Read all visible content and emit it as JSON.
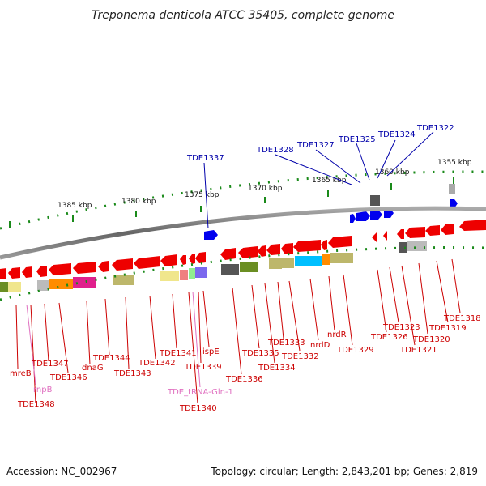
{
  "title": "Treponema denticola ATCC 35405, complete genome",
  "footer": {
    "accession": "Accession: NC_002967",
    "summary": "Topology: circular; Length: 2,843,201 bp; Genes: 2,819"
  },
  "ruler": [
    "1385 kbp",
    "1380 kbp",
    "1375 kbp",
    "1370 kbp",
    "1365 kbp",
    "1360 kbp",
    "1355 kbp"
  ],
  "forward_labels": [
    "TDE1337",
    "TDE1328",
    "TDE1327",
    "TDE1325",
    "TDE1324",
    "TDE1322"
  ],
  "reverse_labels": [
    "mreB",
    "TDE1348",
    "TDE1347",
    "TDE1346",
    "dnaG",
    "TDE1344",
    "TDE1343",
    "TDE1342",
    "TDE1341",
    "TDE1340",
    "TDE1339",
    "ispE",
    "TDE1336",
    "TDE1335",
    "TDE1334",
    "TDE1333",
    "TDE1332",
    "nrdD",
    "nrdR",
    "TDE1329",
    "TDE1326",
    "TDE1323",
    "TDE1321",
    "TDE1320",
    "TDE1319",
    "TDE1318"
  ],
  "rna_labels": [
    "rnpB",
    "TDE_tRNA-Gln-1"
  ],
  "colors": {
    "forward": "#0000ee",
    "reverse": "#ee0000",
    "backbone": "#888888",
    "ticks": "#1a8a1a",
    "rev_label": "#cc0000",
    "fwd_label": "#0000aa",
    "rna_label": "#e070c0"
  }
}
